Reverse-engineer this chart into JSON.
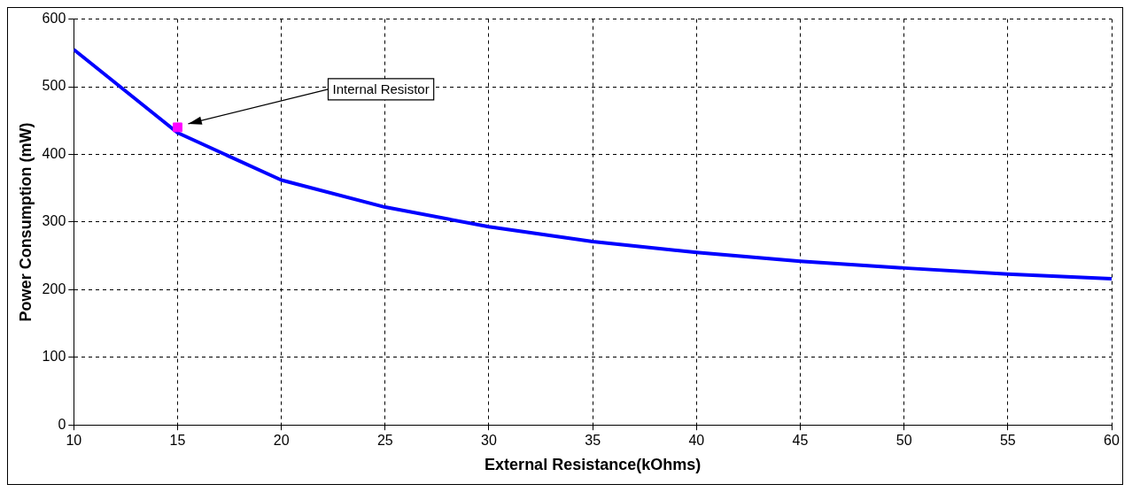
{
  "chart_data": {
    "type": "line",
    "xlabel": "External Resistance(kOhms)",
    "ylabel": "Power Consumption (mW)",
    "x": [
      10,
      15,
      20,
      25,
      30,
      35,
      40,
      45,
      50,
      55,
      60
    ],
    "series": [
      {
        "color": "#0000ff",
        "values": [
          555,
          432,
          362,
          322,
          293,
          271,
          255,
          242,
          232,
          223,
          216
        ],
        "marker": "none"
      },
      {
        "type": "scatter",
        "color": "#ff00ff",
        "x": [
          15
        ],
        "values": [
          440
        ],
        "marker": "square"
      }
    ],
    "xlim": [
      10,
      60
    ],
    "xticks": [
      10,
      15,
      20,
      25,
      30,
      35,
      40,
      45,
      50,
      55,
      60
    ],
    "ylim": [
      0,
      600
    ],
    "yticks": [
      0,
      100,
      200,
      300,
      400,
      500,
      600
    ],
    "grid": true,
    "legend": false,
    "annotations": [
      "Internal Resistor"
    ]
  }
}
